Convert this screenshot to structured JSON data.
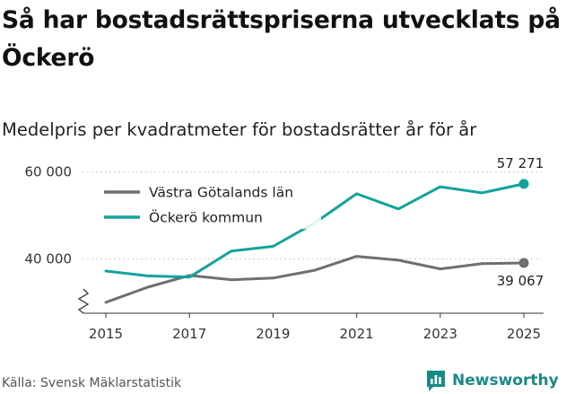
{
  "header": {
    "title": "Så har bostadsrättspriserna utvecklats på Öckerö",
    "subtitle": "Medelpris per kvadratmeter för bostadsrätter år för år"
  },
  "footer": {
    "source": "Källa: Svensk Mäklarstatistik",
    "brand": "Newsworthy"
  },
  "colors": {
    "gray": "#6f6f6f",
    "teal": "#12a39a",
    "brand": "#1a8a86"
  },
  "chart_data": {
    "type": "line",
    "x": [
      2015,
      2016,
      2017,
      2018,
      2019,
      2020,
      2021,
      2022,
      2023,
      2024,
      2025
    ],
    "xticks": [
      2015,
      2017,
      2019,
      2021,
      2023,
      2025
    ],
    "xtick_labels": [
      "2015",
      "2017",
      "2019",
      "2021",
      "2023",
      "2025"
    ],
    "yticks": [
      40000,
      60000
    ],
    "ytick_labels": [
      "40 000",
      "60 000"
    ],
    "ylim": [
      27500,
      62000
    ],
    "y_axis_break": true,
    "legend": {
      "placement": "top-left"
    },
    "series": [
      {
        "name": "Västra Götalands län",
        "color": "#6f6f6f",
        "values": [
          30000,
          33500,
          36200,
          35200,
          35600,
          37400,
          40600,
          39700,
          37700,
          38900,
          39067
        ],
        "end_label": "39 067"
      },
      {
        "name": "Öckerö kommun",
        "color": "#12a39a",
        "values": [
          37200,
          36100,
          35800,
          41800,
          42900,
          48300,
          55000,
          51500,
          56600,
          55200,
          57271
        ],
        "end_label": "57 271"
      }
    ]
  }
}
